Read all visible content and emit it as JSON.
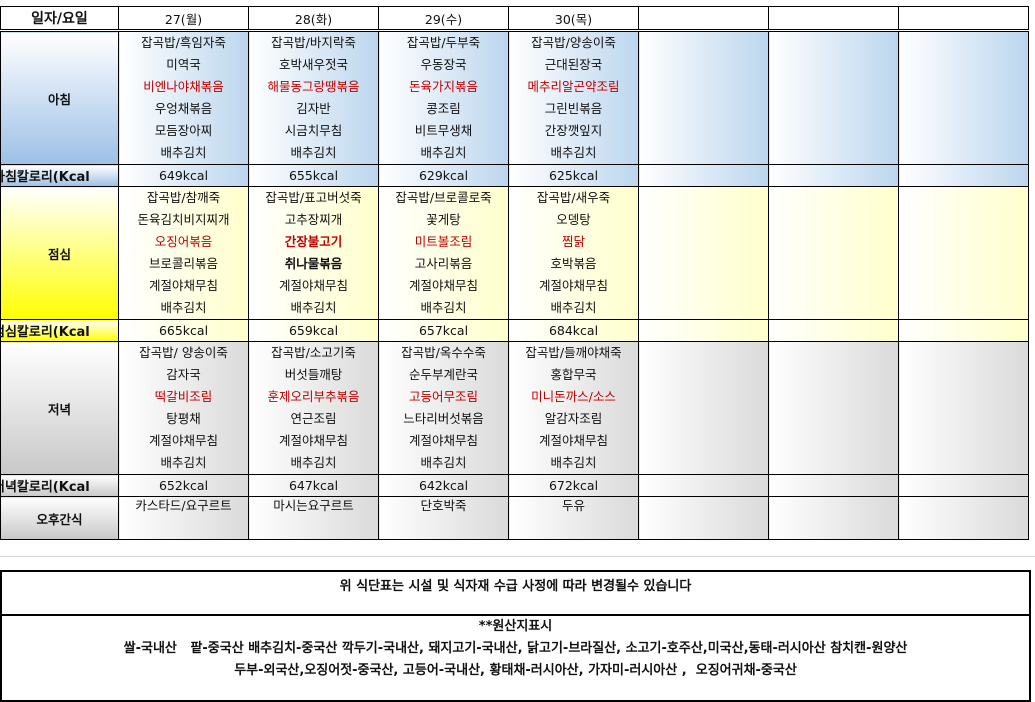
{
  "header": {
    "label": "일자/요일",
    "days": [
      "27(월)",
      "28(화)",
      "29(수)",
      "30(목)",
      "",
      "",
      ""
    ]
  },
  "breakfast": {
    "label": "아침",
    "kcal_label": "아침칼로리(Kcal",
    "days": [
      [
        "잡곡밥/흑임자죽",
        "미역국",
        "비엔나야채볶음",
        "우엉채볶음",
        "모듬장아찌",
        "배추김치"
      ],
      [
        "잡곡밥/바지락죽",
        "호박새우젓국",
        "해물동그랑땡볶음",
        "김자반",
        "시금치무침",
        "배추김치"
      ],
      [
        "잡곡밥/두부죽",
        "우동장국",
        "돈육가지볶음",
        "콩조림",
        "비트무생채",
        "배추김치"
      ],
      [
        "잡곡밥/양송이죽",
        "근대된장국",
        "메추리알곤약조림",
        "그린빈볶음",
        "간장깻잎지",
        "배추김치"
      ],
      [],
      [],
      []
    ],
    "kcal": [
      "649kcal",
      "655kcal",
      "629kcal",
      "625kcal",
      "",
      "",
      ""
    ]
  },
  "lunch": {
    "label": "점심",
    "kcal_label": "점심칼로리(Kcal",
    "days": [
      [
        "잡곡밥/참깨죽",
        "돈육김치비지찌개",
        "오징어볶음",
        "브로콜리볶음",
        "계절야채무침",
        "배추김치"
      ],
      [
        "잡곡밥/표고버섯죽",
        "고추장찌개",
        "간장불고기",
        "취나물볶음",
        "계절야채무침",
        "배추김치"
      ],
      [
        "잡곡밥/브로콜로죽",
        "꽃게탕",
        "미트볼조림",
        "고사리볶음",
        "계절야채무침",
        "배추김치"
      ],
      [
        "잡곡밥/새우죽",
        "오뎅탕",
        "찜닭",
        "호박볶음",
        "계절야채무침",
        "배추김치"
      ],
      [],
      [],
      []
    ],
    "kcal": [
      "665kcal",
      "659kcal",
      "657kcal",
      "684kcal",
      "",
      "",
      ""
    ]
  },
  "dinner": {
    "label": "저녁",
    "kcal_label": "저녁칼로리(Kcal",
    "days": [
      [
        "잡곡밥/ 양송이죽",
        "감자국",
        "떡갈비조림",
        "탕평채",
        "계절야채무침",
        "배추김치"
      ],
      [
        "잡곡밥/소고기죽",
        "버섯들깨탕",
        "훈제오리부추볶음",
        "연근조림",
        "계절야채무침",
        "배추김치"
      ],
      [
        "잡곡밥/옥수수죽",
        "순두부계란국",
        "고등어무조림",
        "느타리버섯볶음",
        "계절야채무침",
        "배추김치"
      ],
      [
        "잡곡밥/들깨야채죽",
        "홍합무국",
        "미니돈까스/소스",
        "알감자조림",
        "계절야채무침",
        "배추김치"
      ],
      [],
      [],
      []
    ],
    "kcal": [
      "652kcal",
      "647kcal",
      "642kcal",
      "672kcal",
      "",
      "",
      ""
    ]
  },
  "snack": {
    "label": "오후간식",
    "items": [
      "카스타드/요구르트",
      "마시는요구르트",
      "단호박죽",
      "두유",
      "",
      "",
      ""
    ]
  },
  "notice": "위 식단표는 시설 및 식자재 수급 사정에 따라 변경될수 있습니다",
  "origin": {
    "title": "**원산지표시",
    "lines": [
      "쌀-국내산   팥-중국산 배추김치-중국산 깍두기-국내산, 돼지고기-국내산, 닭고기-브라질산, 소고기-호주산,미국산,동태-러시아산 참치캔-원양산",
      "두부-외국산,오징어젓-중국산, 고등어-국내산, 황태채-러시아산, 가자미-러시아산 ,  오징어귀채-중국산"
    ]
  },
  "colors": {
    "main_dish": "#c00000",
    "breakfast": "#bcd6ee",
    "lunch": "#ffff00",
    "dinner": "#c8c8c8"
  }
}
